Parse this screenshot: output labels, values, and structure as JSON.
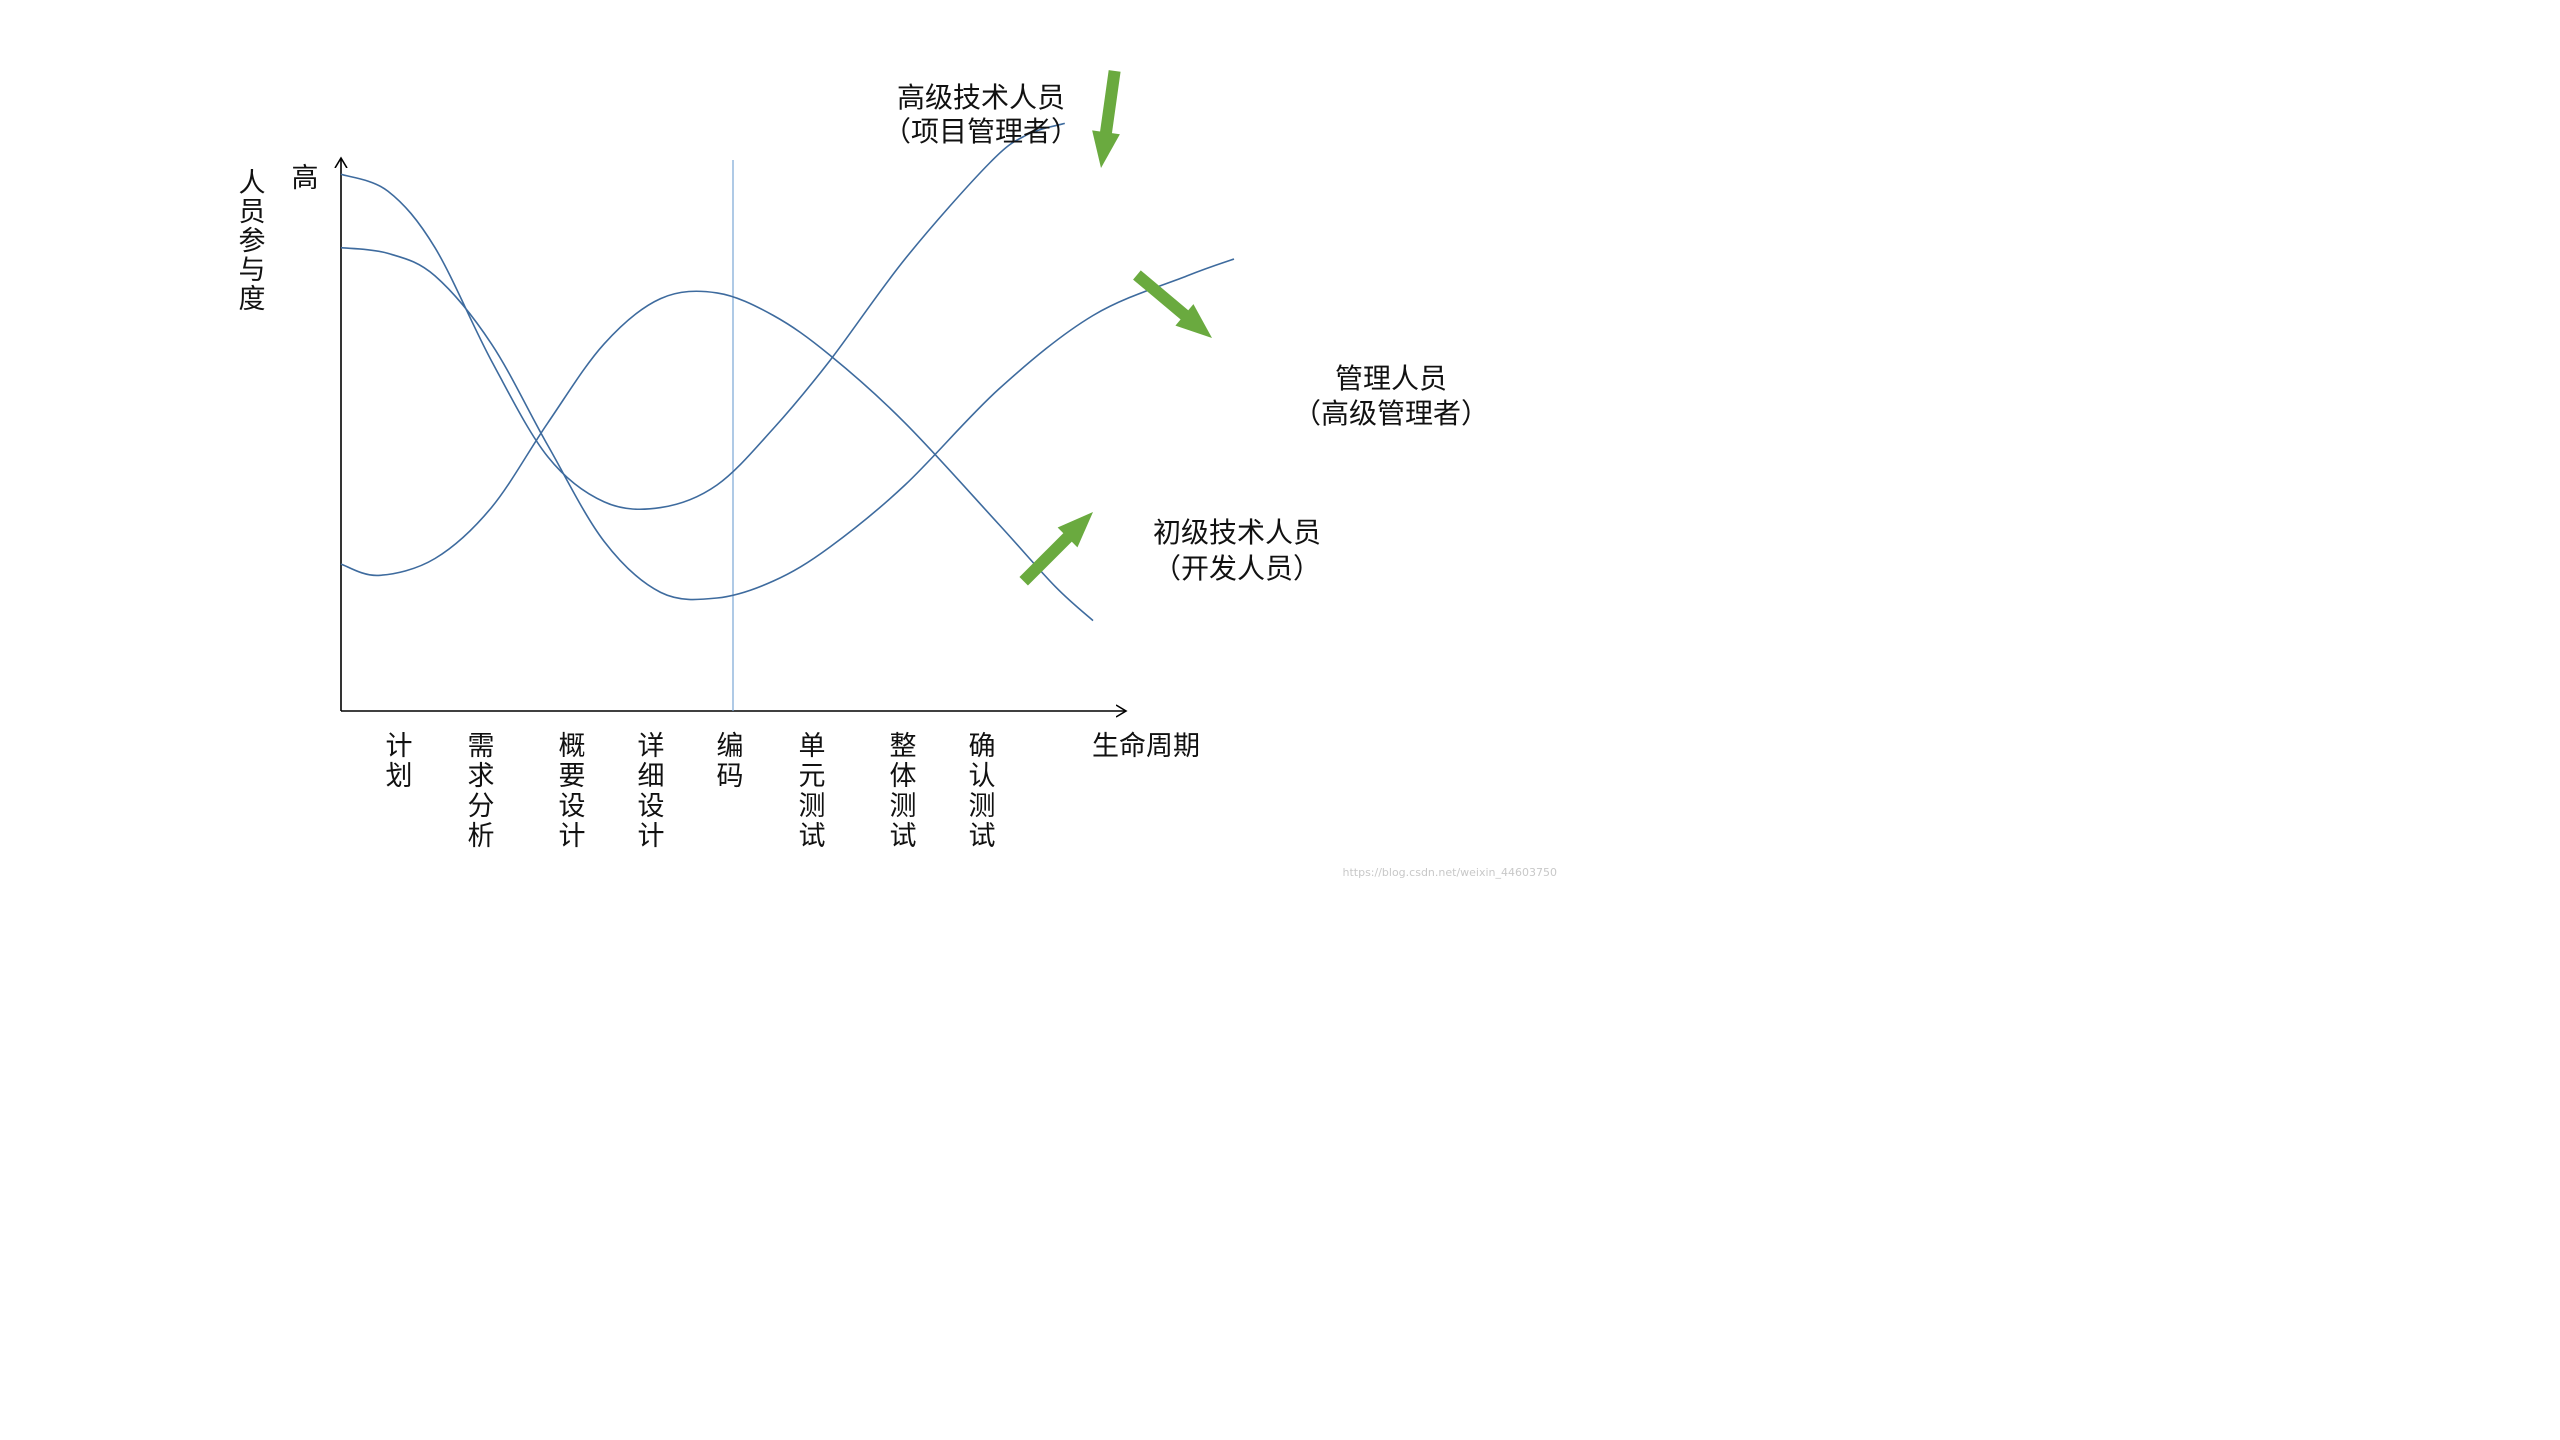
{
  "chart_data": {
    "type": "line",
    "ylabel": "人员参与度",
    "y_high_label": "高",
    "xlabel": "生命周期",
    "categories": [
      "计划",
      "需求分析",
      "概要设计",
      "详细设计",
      "编码",
      "单元测试",
      "整体测试",
      "确认测试"
    ],
    "x_range": [
      0,
      10
    ],
    "y_range": [
      0,
      10
    ],
    "grid": false,
    "reference_line": {
      "category": "编码"
    },
    "series": [
      {
        "name": "高级技术人员（项目管理者）",
        "label_lines": [
          "高级技术人员",
          "（项目管理者）"
        ],
        "points": [
          [
            0,
            9.5
          ],
          [
            0.5,
            9.2
          ],
          [
            1.0,
            8.2
          ],
          [
            1.6,
            6.2
          ],
          [
            2.2,
            4.5
          ],
          [
            2.8,
            3.7
          ],
          [
            3.4,
            3.6
          ],
          [
            4.0,
            4.0
          ],
          [
            4.6,
            5.0
          ],
          [
            5.2,
            6.2
          ],
          [
            6.0,
            8.0
          ],
          [
            6.9,
            9.7
          ],
          [
            7.3,
            10.2
          ],
          [
            7.7,
            10.4
          ]
        ]
      },
      {
        "name": "管理人员（高级管理者）",
        "label_lines": [
          "管理人员",
          "（高级管理者）"
        ],
        "points": [
          [
            0,
            8.2
          ],
          [
            0.5,
            8.1
          ],
          [
            1.0,
            7.7
          ],
          [
            1.6,
            6.5
          ],
          [
            2.2,
            4.7
          ],
          [
            2.8,
            3.0
          ],
          [
            3.4,
            2.1
          ],
          [
            4.0,
            2.0
          ],
          [
            4.6,
            2.3
          ],
          [
            5.2,
            2.9
          ],
          [
            6.0,
            4.0
          ],
          [
            7.0,
            5.7
          ],
          [
            8.0,
            7.0
          ],
          [
            9.0,
            7.7
          ],
          [
            9.5,
            8.0
          ]
        ]
      },
      {
        "name": "初级技术人员（开发人员）",
        "label_lines": [
          "初级技术人员",
          "（开发人员）"
        ],
        "points": [
          [
            0,
            2.6
          ],
          [
            0.4,
            2.4
          ],
          [
            1.0,
            2.7
          ],
          [
            1.6,
            3.6
          ],
          [
            2.2,
            5.1
          ],
          [
            2.8,
            6.5
          ],
          [
            3.4,
            7.3
          ],
          [
            4.0,
            7.4
          ],
          [
            4.6,
            7.0
          ],
          [
            5.2,
            6.3
          ],
          [
            6.0,
            5.1
          ],
          [
            7.0,
            3.3
          ],
          [
            7.6,
            2.2
          ],
          [
            8.0,
            1.6
          ]
        ]
      }
    ]
  },
  "watermark": "https://blog.csdn.net/weixin_44603750",
  "colors": {
    "line": "#3e6b9e",
    "axis": "#000000",
    "reference": "#7aa7d6",
    "arrow": "#6aaa3f"
  }
}
